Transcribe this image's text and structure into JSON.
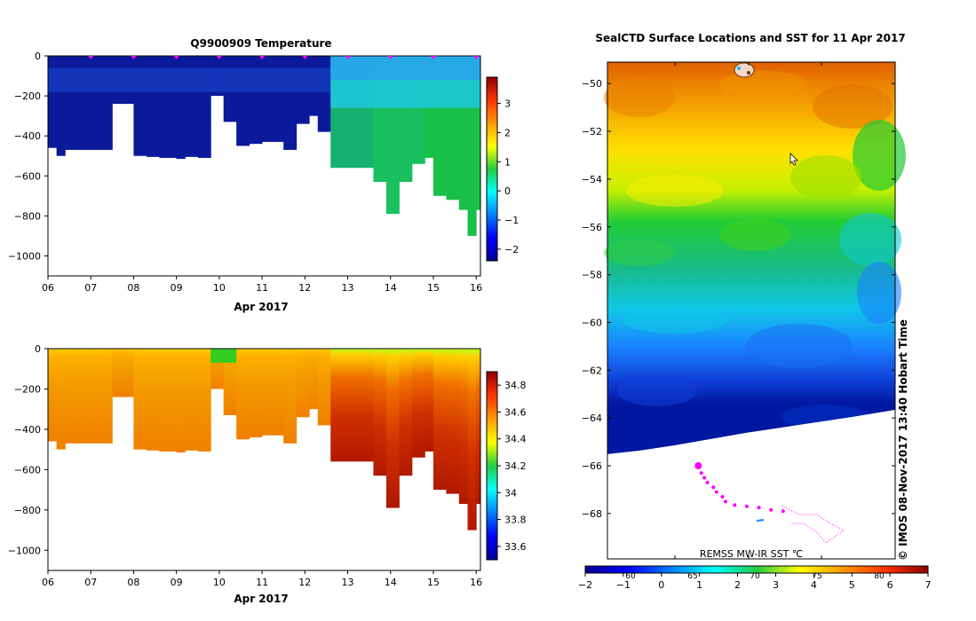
{
  "chart_data": [
    {
      "type": "heatmap",
      "title": "Q9900909  Temperature",
      "xlabel": "Apr 2017",
      "ylabel": "",
      "x_ticks": [
        "06",
        "07",
        "08",
        "09",
        "10",
        "11",
        "12",
        "13",
        "14",
        "15",
        "16"
      ],
      "y_ticks": [
        "0",
        "−200",
        "−400",
        "−600",
        "−800",
        "−1000"
      ],
      "ylim": [
        -1100,
        0
      ],
      "colorbar": {
        "ticks": [
          "3",
          "2",
          "1",
          "0",
          "−1",
          "−2"
        ],
        "range": [
          -2.4,
          3.9
        ]
      },
      "profile_markers": [
        7,
        8,
        9,
        10,
        11,
        12,
        13,
        14,
        15,
        16
      ],
      "series": [
        {
          "name": "max_depth",
          "x": [
            6.0,
            6.2,
            6.4,
            6.8,
            7.2,
            7.5,
            8.0,
            8.3,
            8.6,
            9.0,
            9.2,
            9.5,
            9.8,
            10.1,
            10.4,
            10.7,
            11.0,
            11.3,
            11.5,
            11.8,
            12.1,
            12.3,
            12.6,
            13.0,
            13.3,
            13.6,
            13.9,
            14.2,
            14.5,
            14.8,
            15.0,
            15.3,
            15.6,
            15.8,
            16.0
          ],
          "values": [
            460,
            500,
            470,
            470,
            470,
            240,
            500,
            505,
            510,
            515,
            505,
            510,
            200,
            330,
            450,
            440,
            430,
            430,
            470,
            340,
            300,
            380,
            560,
            560,
            560,
            630,
            790,
            630,
            540,
            510,
            700,
            720,
            770,
            900,
            770
          ]
        }
      ]
    },
    {
      "type": "heatmap",
      "title": "",
      "xlabel": "Apr 2017",
      "ylabel": "",
      "x_ticks": [
        "06",
        "07",
        "08",
        "09",
        "10",
        "11",
        "12",
        "13",
        "14",
        "15",
        "16"
      ],
      "y_ticks": [
        "0",
        "−200",
        "−400",
        "−600",
        "−800",
        "−1000"
      ],
      "ylim": [
        -1100,
        0
      ],
      "colorbar": {
        "ticks": [
          "34.8",
          "34.6",
          "34.4",
          "34.2",
          "34",
          "33.8",
          "33.6"
        ],
        "range": [
          33.5,
          34.9
        ]
      }
    },
    {
      "type": "heatmap",
      "title": "SealCTD Surface Locations and SST for 11 Apr 2017",
      "ylabel": "",
      "y_ticks": [
        "−50",
        "−52",
        "−54",
        "−56",
        "−58",
        "−60",
        "−62",
        "−64",
        "−66",
        "−68"
      ],
      "ylim": [
        -69.9,
        -49.1
      ],
      "colorbar": {
        "ticks": [
          "−2",
          "−1",
          "0",
          "1",
          "2",
          "3",
          "4",
          "5",
          "6",
          "7"
        ],
        "inner_ticks": [
          "60",
          "65",
          "70",
          "75",
          "80"
        ],
        "range": [
          -2,
          7
        ]
      },
      "source_label": "REMSS MW-IR SST ℃",
      "side_label": "© IMOS 08-Nov-2017 13:40 Hobart Time",
      "track_points": [
        [
          -66.0,
          9.0
        ],
        [
          -66.3,
          9.1
        ],
        [
          -66.5,
          9.2
        ],
        [
          -66.7,
          9.3
        ],
        [
          -66.9,
          9.5
        ],
        [
          -67.1,
          9.6
        ],
        [
          -67.3,
          9.8
        ],
        [
          -67.5,
          9.9
        ],
        [
          -67.65,
          10.2
        ],
        [
          -67.7,
          10.6
        ],
        [
          -67.75,
          11.0
        ],
        [
          -67.85,
          11.4
        ],
        [
          -67.9,
          11.8
        ]
      ]
    }
  ],
  "colors": {
    "cold": "#00008f",
    "warm": "#8f0000",
    "track": "#ff00ff",
    "land_white": "#ffffff"
  }
}
